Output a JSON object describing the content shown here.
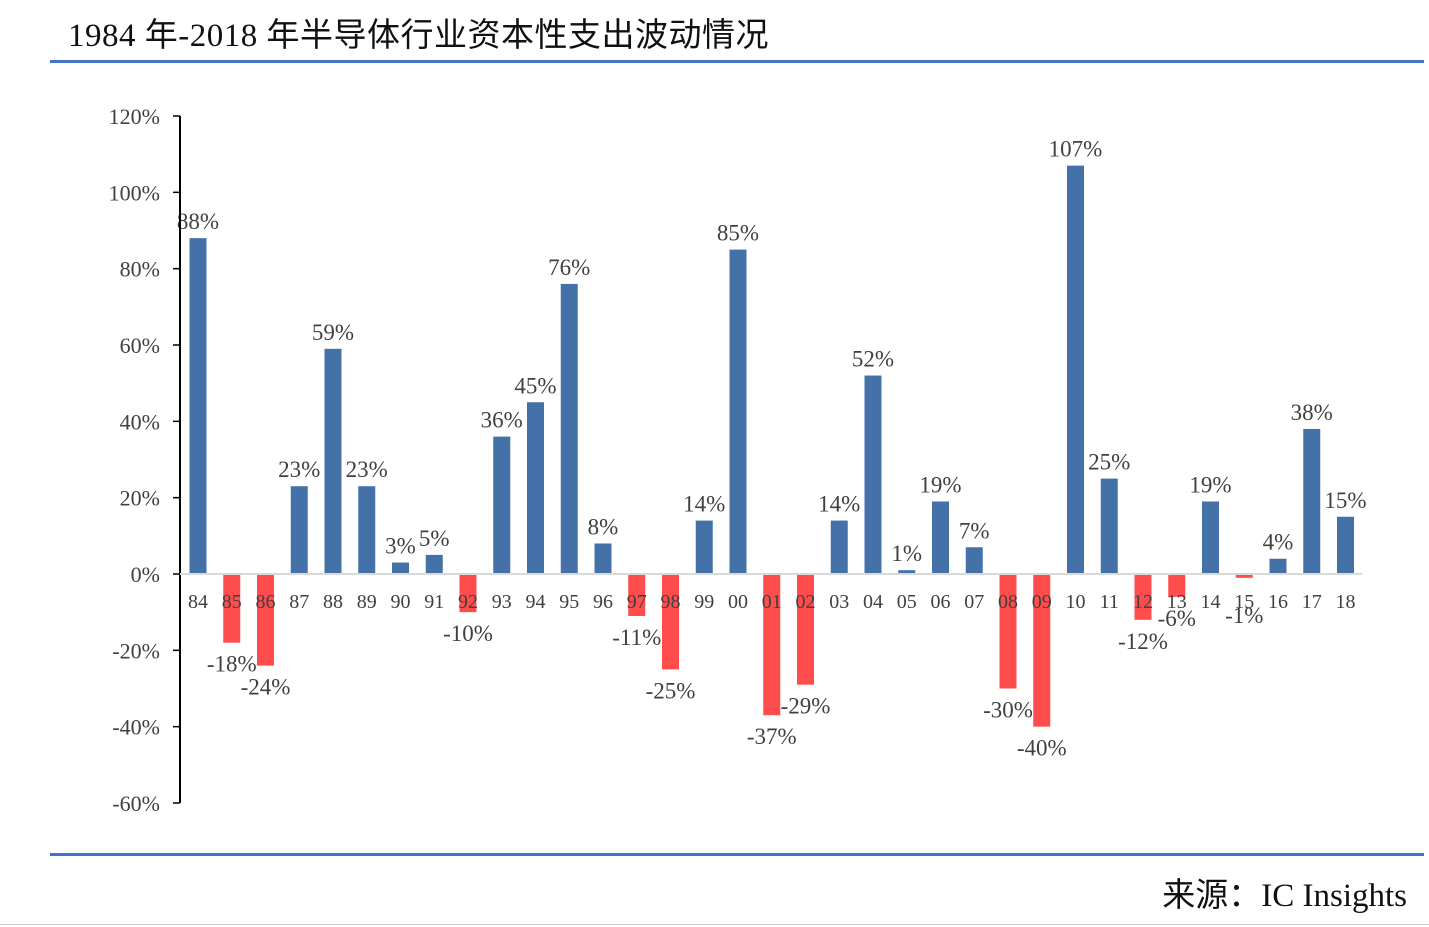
{
  "title": "1984 年-2018 年半导体行业资本性支出波动情况",
  "source": "来源：IC Insights",
  "colors": {
    "positive": "#4472a8",
    "negative": "#ff4c4c",
    "rule": "#4472c4",
    "axis": "#000000",
    "text": "#404040"
  },
  "chart_data": {
    "type": "bar",
    "title": "1984 年-2018 年半导体行业资本性支出波动情况",
    "xlabel": "",
    "ylabel": "",
    "ylim": [
      -60,
      120
    ],
    "yticks": [
      120,
      100,
      80,
      60,
      40,
      20,
      0,
      -20,
      -40,
      -60
    ],
    "ytick_labels": [
      "120%",
      "100%",
      "80%",
      "60%",
      "40%",
      "20%",
      "0%",
      "-20%",
      "-40%",
      "-60%"
    ],
    "grid": false,
    "categories": [
      "84",
      "85",
      "86",
      "87",
      "88",
      "89",
      "90",
      "91",
      "92",
      "93",
      "94",
      "95",
      "96",
      "97",
      "98",
      "99",
      "00",
      "01",
      "02",
      "03",
      "04",
      "05",
      "06",
      "07",
      "08",
      "09",
      "10",
      "11",
      "12",
      "13",
      "14",
      "15",
      "16",
      "17",
      "18"
    ],
    "values": [
      88,
      -18,
      -24,
      23,
      59,
      23,
      3,
      5,
      -10,
      36,
      45,
      76,
      8,
      -11,
      -25,
      14,
      85,
      -37,
      -29,
      14,
      52,
      1,
      19,
      7,
      -30,
      -40,
      107,
      25,
      -12,
      -6,
      19,
      -1,
      4,
      38,
      15
    ],
    "labels": [
      "88%",
      "-18%",
      "-24%",
      "23%",
      "59%",
      "23%",
      "3%",
      "5%",
      "-10%",
      "36%",
      "45%",
      "76%",
      "8%",
      "-11%",
      "-25%",
      "14%",
      "85%",
      "-37%",
      "-29%",
      "14%",
      "52%",
      "1%",
      "19%",
      "7%",
      "-30%",
      "-40%",
      "107%",
      "25%",
      "-12%",
      "-6%",
      "19%",
      "-1%",
      "4%",
      "38%",
      "15%"
    ]
  }
}
